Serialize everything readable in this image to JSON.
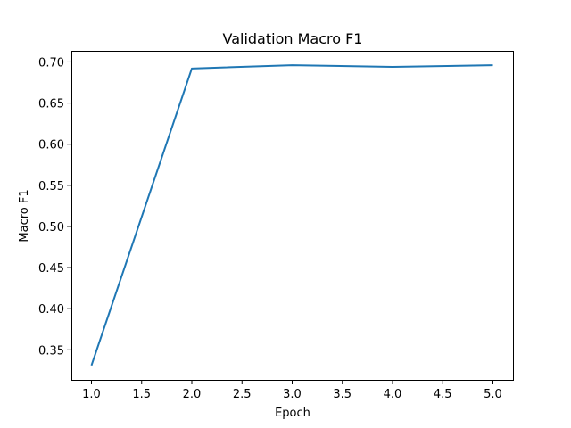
{
  "chart_data": {
    "type": "line",
    "title": "Validation Macro F1",
    "xlabel": "Epoch",
    "ylabel": "Macro F1",
    "xlim": [
      0.8,
      5.2
    ],
    "ylim": [
      0.3135,
      0.7135
    ],
    "xticks": [
      1.0,
      1.5,
      2.0,
      2.5,
      3.0,
      3.5,
      4.0,
      4.5,
      5.0
    ],
    "xtick_labels": [
      "1.0",
      "1.5",
      "2.0",
      "2.5",
      "3.0",
      "3.5",
      "4.0",
      "4.5",
      "5.0"
    ],
    "yticks": [
      0.35,
      0.4,
      0.45,
      0.5,
      0.55,
      0.6,
      0.65,
      0.7
    ],
    "ytick_labels": [
      "0.35",
      "0.40",
      "0.45",
      "0.50",
      "0.55",
      "0.60",
      "0.65",
      "0.70"
    ],
    "grid": false,
    "series": [
      {
        "color": "#1f77b4",
        "x": [
          1,
          2,
          3,
          4,
          5
        ],
        "y": [
          0.331,
          0.692,
          0.696,
          0.694,
          0.696
        ]
      }
    ]
  }
}
